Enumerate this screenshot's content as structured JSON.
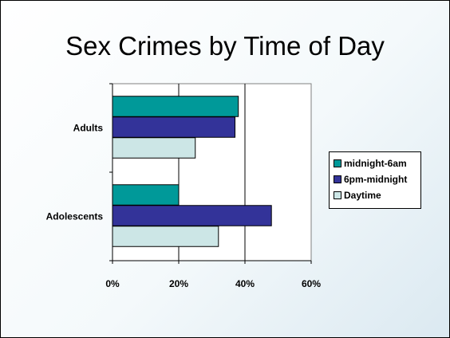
{
  "slide": {
    "title": "Sex Crimes by Time of Day"
  },
  "chart_data": {
    "type": "bar",
    "orientation": "horizontal",
    "categories": [
      "Adults",
      "Adolescents"
    ],
    "series": [
      {
        "name": "midnight-6am",
        "color": "#009999",
        "values": [
          38,
          20
        ]
      },
      {
        "name": "6pm-midnight",
        "color": "#333399",
        "values": [
          37,
          48
        ]
      },
      {
        "name": "Daytime",
        "color": "#cce6e6",
        "values": [
          25,
          32
        ]
      }
    ],
    "xlim": [
      0,
      60
    ],
    "xticks": [
      0,
      20,
      40,
      60
    ],
    "tick_format": "percent",
    "grid": "vertical gridlines",
    "legend_position": "right"
  }
}
